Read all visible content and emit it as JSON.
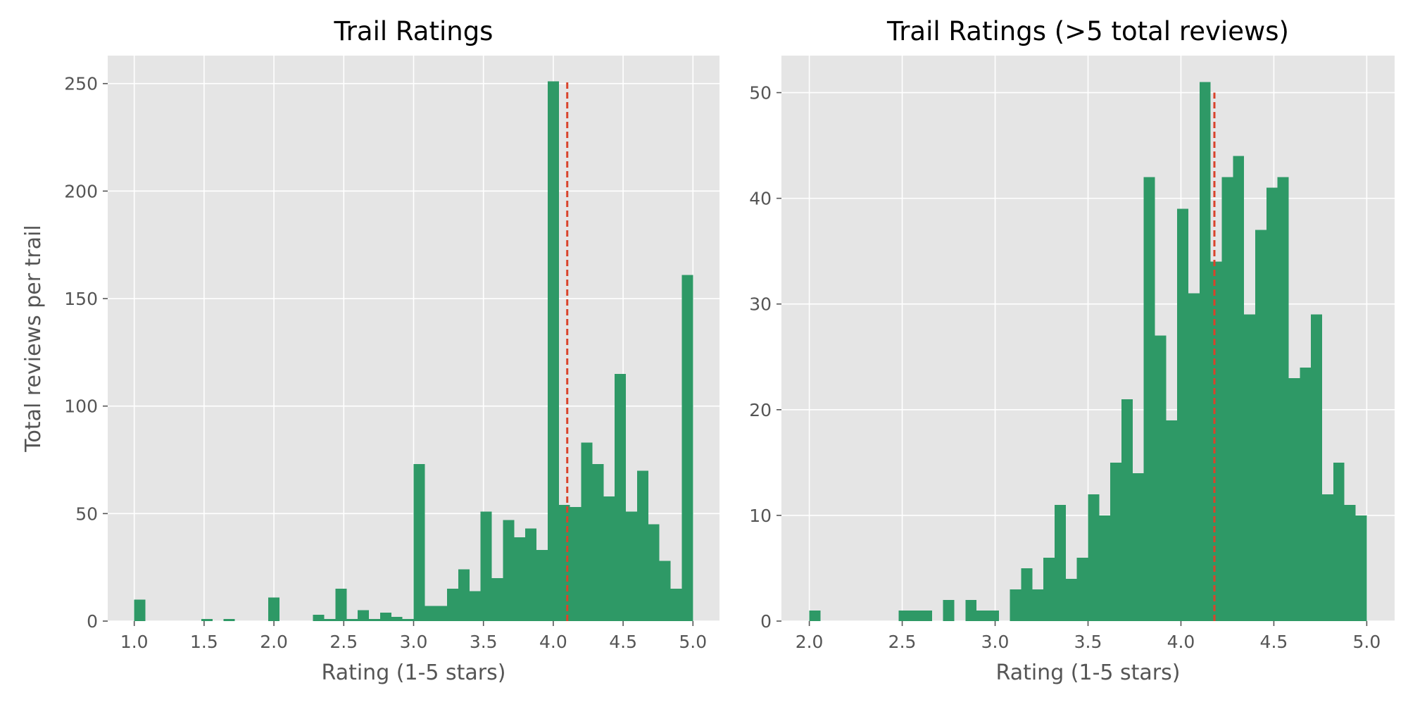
{
  "colors": {
    "panel_background": "#e5e5e5",
    "grid": "#ffffff",
    "bar": "#2e9966",
    "mean_line": "#d9432b",
    "tick_text": "#555555",
    "title_text": "#000000"
  },
  "chart_data": [
    {
      "type": "bar",
      "style": "histogram",
      "title": "Trail Ratings",
      "xlabel": "Rating (1-5 stars)",
      "ylabel": "Total reviews per trail",
      "xlim": [
        0.81,
        5.19
      ],
      "ylim": [
        0,
        263
      ],
      "xticks": [
        1.0,
        1.5,
        2.0,
        2.5,
        3.0,
        3.5,
        4.0,
        4.5,
        5.0
      ],
      "xtick_labels": [
        "1.0",
        "1.5",
        "2.0",
        "2.5",
        "3.0",
        "3.5",
        "4.0",
        "4.5",
        "5.0"
      ],
      "yticks": [
        0,
        50,
        100,
        150,
        200,
        250
      ],
      "ytick_labels": [
        "0",
        "50",
        "100",
        "150",
        "200",
        "250"
      ],
      "grid": true,
      "bin_start": 1.0,
      "bin_width": 0.08,
      "values": [
        10,
        0,
        0,
        0,
        0,
        0,
        1,
        0,
        1,
        0,
        0,
        0,
        11,
        0,
        0,
        0,
        3,
        1,
        15,
        1,
        5,
        1,
        4,
        2,
        1,
        73,
        7,
        7,
        15,
        24,
        14,
        51,
        20,
        47,
        39,
        43,
        33,
        251,
        54,
        53,
        83,
        73,
        58,
        115,
        51,
        70,
        45,
        28,
        15,
        161
      ],
      "reference_lines": [
        {
          "orientation": "vertical",
          "x": 4.1,
          "y_range": [
            0,
            251
          ],
          "style": "dashed"
        }
      ]
    },
    {
      "type": "bar",
      "style": "histogram",
      "title": "Trail Ratings (>5 total reviews)",
      "xlabel": "Rating (1-5 stars)",
      "ylabel": "",
      "xlim": [
        1.85,
        5.15
      ],
      "ylim": [
        0,
        53.5
      ],
      "xticks": [
        2.0,
        2.5,
        3.0,
        3.5,
        4.0,
        4.5,
        5.0
      ],
      "xtick_labels": [
        "2.0",
        "2.5",
        "3.0",
        "3.5",
        "4.0",
        "4.5",
        "5.0"
      ],
      "yticks": [
        0,
        10,
        20,
        30,
        40,
        50
      ],
      "ytick_labels": [
        "0",
        "10",
        "20",
        "30",
        "40",
        "50"
      ],
      "grid": true,
      "bin_start": 2.0,
      "bin_width": 0.06,
      "values": [
        1,
        0,
        0,
        0,
        0,
        0,
        0,
        0,
        1,
        1,
        1,
        0,
        2,
        0,
        2,
        1,
        1,
        0,
        3,
        5,
        3,
        6,
        11,
        4,
        6,
        12,
        10,
        15,
        21,
        14,
        42,
        27,
        19,
        39,
        31,
        51,
        34,
        42,
        44,
        29,
        37,
        41,
        42,
        23,
        24,
        29,
        12,
        15,
        11,
        10
      ],
      "reference_lines": [
        {
          "orientation": "vertical",
          "x": 4.18,
          "y_range": [
            0,
            50
          ],
          "style": "dashed"
        }
      ]
    }
  ]
}
